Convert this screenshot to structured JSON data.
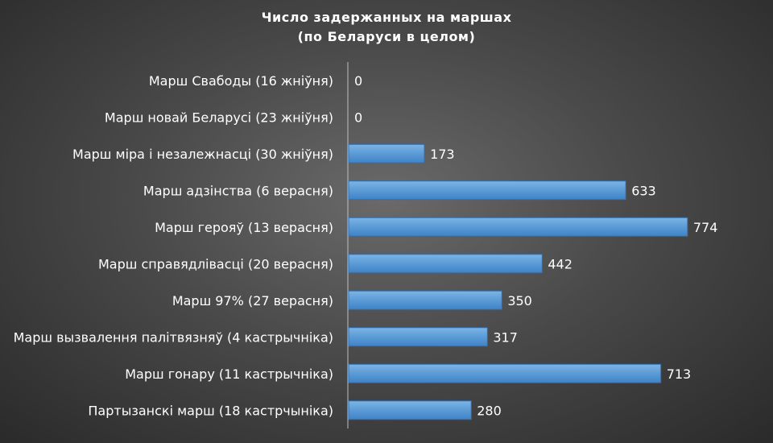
{
  "chart_data": {
    "type": "bar",
    "orientation": "horizontal",
    "title": "Число задержанных  на маршах",
    "subtitle": "(по Беларуси в целом)",
    "categories": [
      "Марш Свабоды (16 жніўня)",
      "Марш новай Беларусі (23 жніўня)",
      "Марш міра і незалежнасці (30 жніўня)",
      "Марш адзінства (6 верасня)",
      "Марш герояў (13 верасня)",
      "Марш справядлівасці (20 верасня)",
      "Марш 97% (27 верасня)",
      "Марш вызвалення палітвязняў (4 кастрычніка)",
      "Марш гонару (11 кастрычніка)",
      "Партызанскі марш (18 кастрчыніка)"
    ],
    "values": [
      0,
      0,
      173,
      633,
      774,
      442,
      350,
      317,
      713,
      280
    ],
    "data_labels": [
      "0",
      "0",
      "173",
      "633",
      "774",
      "442",
      "350",
      "317",
      "713",
      "280"
    ],
    "xlim": [
      0,
      800
    ],
    "grid": false,
    "legend": "none",
    "colors": {
      "bar": "#5b9bd5",
      "bar_dark": "#3f83c8",
      "text": "#ffffff",
      "axis": "#bfbfbf"
    }
  }
}
